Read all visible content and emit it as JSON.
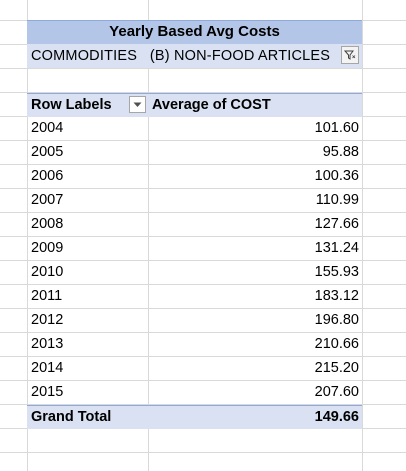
{
  "pivot": {
    "title": "Yearly Based Avg Costs",
    "filter_label": "COMMODITIES",
    "filter_value": "(B) NON-FOOD ARTICLES",
    "row_labels_header": "Row Labels",
    "value_header": "Average of COST",
    "rows": [
      {
        "label": "2004",
        "value": "101.60"
      },
      {
        "label": "2005",
        "value": "95.88"
      },
      {
        "label": "2006",
        "value": "100.36"
      },
      {
        "label": "2007",
        "value": "110.99"
      },
      {
        "label": "2008",
        "value": "127.66"
      },
      {
        "label": "2009",
        "value": "131.24"
      },
      {
        "label": "2010",
        "value": "155.93"
      },
      {
        "label": "2011",
        "value": "183.12"
      },
      {
        "label": "2012",
        "value": "196.80"
      },
      {
        "label": "2013",
        "value": "210.66"
      },
      {
        "label": "2014",
        "value": "215.20"
      },
      {
        "label": "2015",
        "value": "207.60"
      }
    ],
    "grand_total_label": "Grand Total",
    "grand_total_value": "149.66"
  },
  "icons": {
    "filter": "filter-funnel-icon",
    "dropdown": "chevron-down-icon"
  },
  "colors": {
    "title_fill": "#b4c6e7",
    "band_fill": "#d9e1f2",
    "band_border": "#8ea9db",
    "gridline": "#d9d9d9"
  }
}
